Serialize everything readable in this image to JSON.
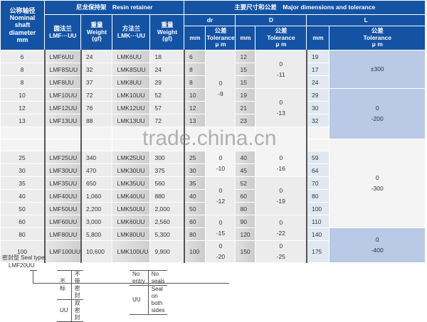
{
  "header": {
    "nominal": [
      "公称轴径",
      "Nominal",
      "shaft",
      "diameter",
      "mm"
    ],
    "resin": "尼龙保持架　Resin retainer",
    "major": "主要尺寸和公差　Major dimensions and tolerance",
    "lmf": [
      "圆法兰",
      "LMF···UU"
    ],
    "weight": [
      "重量",
      "Weight",
      "(gf)"
    ],
    "lmk": [
      "方法兰",
      "LMK···UU"
    ],
    "dr": "dr",
    "D": "D",
    "L": "L",
    "mm": "mm",
    "tolerance": [
      "公差",
      "Tolerance",
      "μ m"
    ]
  },
  "rows": [
    [
      "6",
      "LMF6UU",
      "24",
      "LMK6UU",
      "18",
      "6",
      "12",
      "19"
    ],
    [
      "8",
      "LMF8SUU",
      "32",
      "LMK8SUU",
      "24",
      "8",
      "15",
      "17"
    ],
    [
      "8",
      "LMF8UU",
      "37",
      "LMK8UU",
      "29",
      "8",
      "15",
      "24"
    ],
    [
      "10",
      "LMF10UU",
      "72",
      "LMK10UU",
      "52",
      "10",
      "19",
      "29"
    ],
    [
      "12",
      "LMF12UU",
      "76",
      "LMK12UU",
      "57",
      "12",
      "21",
      "30"
    ],
    [
      "13",
      "LMF13UU",
      "88",
      "LMK13UU",
      "72",
      "13",
      "23",
      "32"
    ],
    null,
    null,
    [
      "25",
      "LMF25UU",
      "340",
      "LMK25UU",
      "300",
      "25",
      "40",
      "59"
    ],
    [
      "30",
      "LMF30UU",
      "470",
      "LMK30UU",
      "375",
      "30",
      "45",
      "64"
    ],
    [
      "35",
      "LMF35UU",
      "650",
      "LMK35UU",
      "560",
      "35",
      "52",
      "70"
    ],
    [
      "40",
      "LMF40UU",
      "1,060",
      "LMK40UU",
      "880",
      "40",
      "60",
      "80"
    ],
    [
      "50",
      "LMF50UU",
      "2,200",
      "LMK50UU",
      "2,000",
      "50",
      "80",
      "100"
    ],
    [
      "60",
      "LMF60UU",
      "3,000",
      "LMK60UU",
      "2,560",
      "60",
      "90",
      "110"
    ],
    [
      "80",
      "LMF80UU",
      "5,800",
      "LMK80UU",
      "5,300",
      "80",
      "120",
      "140"
    ],
    [
      "100",
      "LMF100UU",
      "10,600",
      "LMK100UU",
      "9,900",
      "100",
      "150",
      "175"
    ]
  ],
  "dr_tol": [
    {
      "start": 0,
      "span": 6,
      "v": [
        "0",
        "-9"
      ]
    },
    {
      "start": 6,
      "span": 4,
      "v": [
        "0",
        "-10"
      ]
    },
    {
      "start": 10,
      "span": 3,
      "v": [
        "0",
        "-12"
      ]
    },
    {
      "start": 13,
      "span": 2,
      "v": [
        "0",
        "-15"
      ]
    },
    {
      "start": 15,
      "span": 1,
      "v": [
        "0",
        "-20"
      ]
    }
  ],
  "D_tol": [
    {
      "start": 0,
      "span": 3,
      "v": [
        "0",
        "-11"
      ]
    },
    {
      "start": 3,
      "span": 3,
      "v": [
        "0",
        "-13"
      ]
    },
    {
      "start": 6,
      "span": 4,
      "v": [
        "0",
        "-16"
      ]
    },
    {
      "start": 10,
      "span": 3,
      "v": [
        "0",
        "-19"
      ]
    },
    {
      "start": 13,
      "span": 2,
      "v": [
        "0",
        "-22"
      ]
    },
    {
      "start": 15,
      "span": 1,
      "v": [
        "0",
        "-25"
      ]
    }
  ],
  "L_tol": [
    {
      "start": 0,
      "span": 3,
      "v": [
        "±300"
      ]
    },
    {
      "start": 3,
      "span": 4,
      "v": [
        "0",
        "-200"
      ]
    },
    {
      "start": 7,
      "span": 7,
      "v": [
        "0",
        "-300"
      ]
    },
    {
      "start": 14,
      "span": 2,
      "v": [
        "0",
        "-400"
      ]
    }
  ],
  "watermark": "trade.china.cn",
  "seal": {
    "title": "密封型 Seal type:",
    "model": "LMF20UU",
    "cn": [
      [
        "不标",
        "不带密封"
      ],
      [
        "UU",
        "双密封"
      ]
    ],
    "en": [
      [
        "No entry",
        "No seals"
      ],
      [
        "UU",
        "Seal on both sides"
      ]
    ]
  },
  "colors": {
    "header": "#1453a4",
    "l_tolerance": "#b9c9e6"
  }
}
